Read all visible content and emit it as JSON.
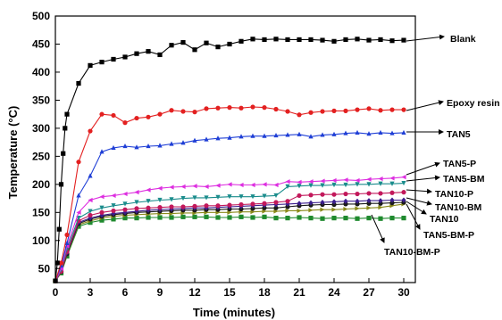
{
  "chart_data": {
    "type": "line",
    "xlabel": "Time (minutes)",
    "ylabel": "Temperature (°C)",
    "xlim": [
      0,
      31
    ],
    "ylim": [
      25,
      500
    ],
    "xticks": [
      0,
      3,
      6,
      9,
      12,
      15,
      18,
      21,
      24,
      27,
      30
    ],
    "yticks": [
      50,
      100,
      150,
      200,
      250,
      300,
      350,
      400,
      450,
      500
    ],
    "legend_placement": "right, arrow labels",
    "series": [
      {
        "name": "Blank",
        "color": "#000000",
        "marker": "square",
        "x": [
          0,
          0.17,
          0.33,
          0.5,
          0.67,
          0.83,
          1,
          2,
          3,
          4,
          5,
          6,
          7,
          8,
          9,
          10,
          11,
          12,
          13,
          14,
          15,
          16,
          17,
          18,
          19,
          20,
          21,
          22,
          23,
          24,
          25,
          26,
          27,
          28,
          29,
          30
        ],
        "y": [
          28,
          60,
          120,
          200,
          255,
          300,
          325,
          380,
          412,
          418,
          423,
          427,
          433,
          437,
          431,
          448,
          453,
          440,
          452,
          445,
          450,
          455,
          459,
          458,
          459,
          458,
          458,
          458,
          457,
          455,
          458,
          459,
          457,
          458,
          456,
          457
        ]
      },
      {
        "name": "Epoxy resin",
        "color": "#e32020",
        "marker": "circle",
        "x": [
          0,
          0.5,
          1,
          2,
          3,
          4,
          5,
          6,
          7,
          8,
          9,
          10,
          11,
          12,
          13,
          14,
          15,
          16,
          17,
          18,
          19,
          20,
          21,
          22,
          23,
          24,
          25,
          26,
          27,
          28,
          29,
          30
        ],
        "y": [
          28,
          60,
          110,
          240,
          295,
          325,
          323,
          310,
          318,
          320,
          325,
          332,
          330,
          329,
          335,
          336,
          337,
          336,
          338,
          337,
          334,
          330,
          324,
          328,
          330,
          331,
          331,
          333,
          335,
          332,
          333,
          333
        ]
      },
      {
        "name": "TAN5",
        "color": "#1f3fd6",
        "marker": "triangle",
        "x": [
          0,
          0.5,
          1,
          2,
          3,
          4,
          5,
          6,
          7,
          8,
          9,
          10,
          11,
          12,
          13,
          14,
          15,
          16,
          17,
          18,
          19,
          20,
          21,
          22,
          23,
          24,
          25,
          26,
          27,
          28,
          29,
          30
        ],
        "y": [
          28,
          55,
          95,
          180,
          215,
          258,
          265,
          268,
          266,
          268,
          269,
          272,
          274,
          278,
          280,
          282,
          283,
          285,
          286,
          286,
          287,
          288,
          289,
          285,
          288,
          289,
          291,
          292,
          290,
          292,
          291,
          292
        ]
      },
      {
        "name": "TAN5-P",
        "color": "#dd2ee0",
        "marker": "triangle-left",
        "x": [
          0,
          0.5,
          1,
          2,
          3,
          4,
          5,
          6,
          7,
          8,
          9,
          10,
          11,
          12,
          13,
          14,
          15,
          16,
          17,
          18,
          19,
          20,
          21,
          22,
          23,
          24,
          25,
          26,
          27,
          28,
          29,
          30
        ],
        "y": [
          28,
          50,
          90,
          150,
          172,
          178,
          180,
          183,
          186,
          190,
          193,
          195,
          196,
          197,
          196,
          198,
          200,
          199,
          199,
          200,
          199,
          205,
          204,
          205,
          206,
          207,
          208,
          207,
          209,
          210,
          211,
          213
        ]
      },
      {
        "name": "TAN5-BM",
        "color": "#1a8c8c",
        "marker": "triangle-down",
        "x": [
          0,
          0.5,
          1,
          2,
          3,
          4,
          5,
          6,
          7,
          8,
          9,
          10,
          11,
          12,
          13,
          14,
          15,
          16,
          17,
          18,
          19,
          20,
          21,
          22,
          23,
          24,
          25,
          26,
          27,
          28,
          29,
          30
        ],
        "y": [
          28,
          48,
          85,
          140,
          152,
          158,
          162,
          165,
          168,
          170,
          172,
          173,
          175,
          176,
          176,
          177,
          178,
          178,
          178,
          179,
          180,
          196,
          197,
          198,
          198,
          199,
          199,
          200,
          200,
          201,
          201,
          202
        ]
      },
      {
        "name": "TAN10-P",
        "color": "#c2185b",
        "marker": "circle",
        "x": [
          0,
          0.5,
          1,
          2,
          3,
          4,
          5,
          6,
          7,
          8,
          9,
          10,
          11,
          12,
          13,
          14,
          15,
          16,
          17,
          18,
          19,
          20,
          21,
          22,
          23,
          24,
          25,
          26,
          27,
          28,
          29,
          30
        ],
        "y": [
          28,
          45,
          80,
          135,
          145,
          150,
          153,
          155,
          157,
          158,
          159,
          160,
          160,
          161,
          162,
          162,
          163,
          164,
          165,
          166,
          168,
          170,
          180,
          181,
          182,
          182,
          183,
          183,
          184,
          184,
          185,
          186
        ]
      },
      {
        "name": "TAN10-BM",
        "color": "#3a1d8c",
        "marker": "diamond",
        "x": [
          0,
          0.5,
          1,
          2,
          3,
          4,
          5,
          6,
          7,
          8,
          9,
          10,
          11,
          12,
          13,
          14,
          15,
          16,
          17,
          18,
          19,
          20,
          21,
          22,
          23,
          24,
          25,
          26,
          27,
          28,
          29,
          30
        ],
        "y": [
          28,
          45,
          78,
          132,
          140,
          145,
          148,
          150,
          152,
          154,
          155,
          156,
          157,
          158,
          158,
          159,
          160,
          161,
          162,
          163,
          164,
          165,
          166,
          167,
          168,
          169,
          170,
          170,
          171,
          171,
          172,
          172
        ]
      },
      {
        "name": "TAN10",
        "color": "#1a1a1a",
        "marker": "circle",
        "x": [
          0,
          0.5,
          1,
          2,
          3,
          4,
          5,
          6,
          7,
          8,
          9,
          10,
          11,
          12,
          13,
          14,
          15,
          16,
          17,
          18,
          19,
          20,
          21,
          22,
          23,
          24,
          25,
          26,
          27,
          28,
          29,
          30
        ],
        "y": [
          28,
          44,
          76,
          130,
          138,
          143,
          146,
          148,
          150,
          151,
          152,
          153,
          154,
          154,
          155,
          155,
          156,
          156,
          157,
          158,
          158,
          160,
          162,
          163,
          164,
          164,
          165,
          165,
          166,
          166,
          167,
          168
        ]
      },
      {
        "name": "TAN5-BM-P",
        "color": "#8a8a1a",
        "marker": "triangle-right",
        "x": [
          0,
          0.5,
          1,
          2,
          3,
          4,
          5,
          6,
          7,
          8,
          9,
          10,
          11,
          12,
          13,
          14,
          15,
          16,
          17,
          18,
          19,
          20,
          21,
          22,
          23,
          24,
          25,
          26,
          27,
          28,
          29,
          30
        ],
        "y": [
          28,
          43,
          74,
          128,
          135,
          140,
          143,
          145,
          146,
          147,
          148,
          148,
          149,
          149,
          150,
          150,
          150,
          151,
          151,
          152,
          152,
          153,
          153,
          154,
          155,
          155,
          156,
          157,
          158,
          159,
          162,
          165
        ]
      },
      {
        "name": "TAN10-BM-P",
        "color": "#1f8a2e",
        "marker": "square",
        "x": [
          0,
          0.5,
          1,
          2,
          3,
          4,
          5,
          6,
          7,
          8,
          9,
          10,
          11,
          12,
          13,
          14,
          15,
          16,
          17,
          18,
          19,
          20,
          21,
          22,
          23,
          24,
          25,
          26,
          27,
          28,
          29,
          30
        ],
        "y": [
          28,
          42,
          72,
          125,
          132,
          136,
          138,
          140,
          140,
          141,
          141,
          141,
          142,
          142,
          142,
          141,
          141,
          142,
          141,
          142,
          140,
          140,
          141,
          140,
          139,
          140,
          140,
          139,
          140,
          139,
          140,
          140
        ]
      }
    ],
    "labels": [
      {
        "text": "Blank",
        "lx": 504,
        "ly": 43,
        "ax1": 455,
        "ay1": 46,
        "ax2": 497,
        "ay2": 41
      },
      {
        "text": "Epoxy resin",
        "lx": 500,
        "ly": 115,
        "ax1": 455,
        "ay1": 124,
        "ax2": 496,
        "ay2": 114
      },
      {
        "text": "TAN5",
        "lx": 500,
        "ly": 150,
        "ax1": 455,
        "ay1": 148,
        "ax2": 496,
        "ay2": 148
      },
      {
        "text": "TAN5-P",
        "lx": 496,
        "ly": 183,
        "ax1": 455,
        "ay1": 196,
        "ax2": 492,
        "ay2": 183
      },
      {
        "text": "TAN5-BM",
        "lx": 496,
        "ly": 200,
        "ax1": 455,
        "ay1": 203,
        "ax2": 492,
        "ay2": 199
      },
      {
        "text": "TAN10-P",
        "lx": 487,
        "ly": 217,
        "ax1": 455,
        "ay1": 213,
        "ax2": 483,
        "ay2": 215
      },
      {
        "text": "TAN10-BM",
        "lx": 487,
        "ly": 232,
        "ax1": 455,
        "ay1": 222,
        "ax2": 483,
        "ay2": 229
      },
      {
        "text": "TAN10",
        "lx": 481,
        "ly": 245,
        "ax1": 455,
        "ay1": 226,
        "ax2": 477,
        "ay2": 240
      },
      {
        "text": "TAN5-BM-P",
        "lx": 474,
        "ly": 263,
        "ax1": 455,
        "ay1": 229,
        "ax2": 470,
        "ay2": 257
      },
      {
        "text": "TAN10-BM-P",
        "lx": 430,
        "ly": 282,
        "ax1": 416,
        "ay1": 241,
        "ax2": 430,
        "ay2": 272
      }
    ]
  }
}
